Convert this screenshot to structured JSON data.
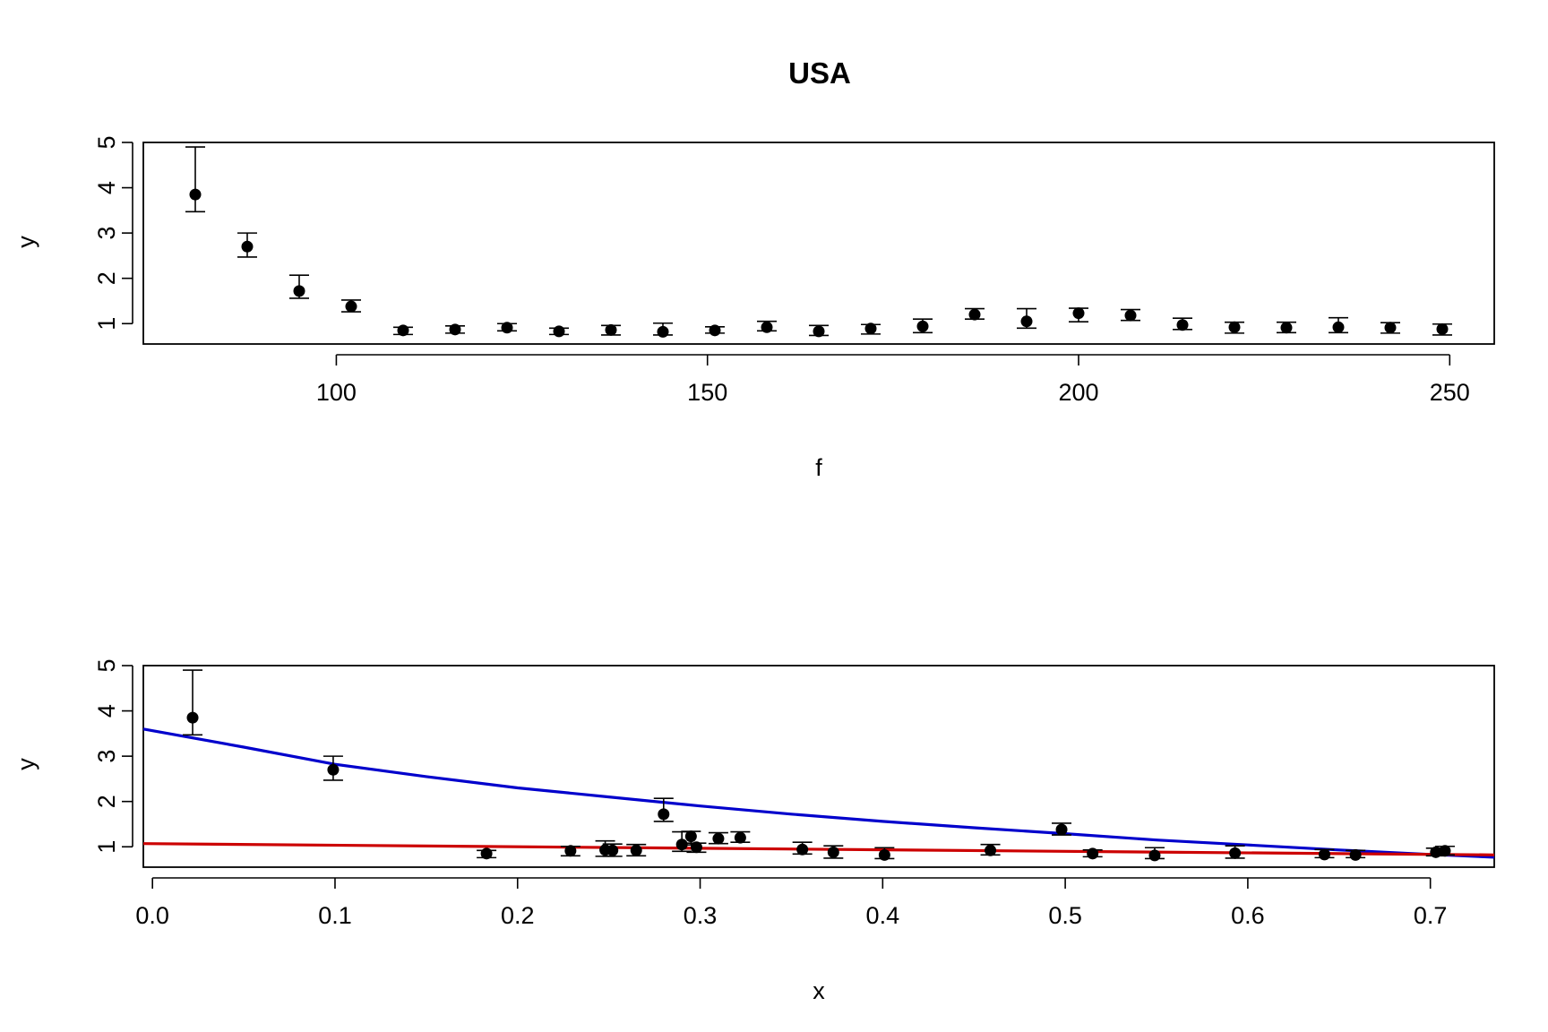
{
  "title": "USA",
  "colors": {
    "points": "#000000",
    "fit_decay": "#0000cc",
    "fit_flat": "#cc0000"
  },
  "chart_data": [
    {
      "type": "scatter",
      "xlabel": "f",
      "ylabel": "y",
      "xlim": [
        74,
        256
      ],
      "ylim": [
        0.55,
        5
      ],
      "xticks": [
        "100",
        "150",
        "200",
        "250"
      ],
      "yticks": [
        "1",
        "2",
        "3",
        "4",
        "5"
      ],
      "grid": false,
      "x": [
        81,
        88,
        95,
        102,
        109,
        116,
        123,
        130,
        137,
        144,
        151,
        158,
        165,
        172,
        179,
        186,
        193,
        200,
        207,
        214,
        221,
        228,
        235,
        242,
        249
      ],
      "y": [
        3.85,
        2.7,
        1.72,
        1.38,
        0.85,
        0.87,
        0.91,
        0.83,
        0.86,
        0.82,
        0.85,
        0.92,
        0.83,
        0.89,
        0.94,
        1.2,
        1.05,
        1.23,
        1.18,
        0.97,
        0.92,
        0.91,
        0.92,
        0.91,
        0.88
      ],
      "err_lower": [
        3.47,
        2.47,
        1.56,
        1.26,
        0.76,
        0.79,
        0.84,
        0.76,
        0.75,
        0.75,
        0.79,
        0.84,
        0.74,
        0.77,
        0.8,
        1.1,
        0.9,
        1.04,
        1.07,
        0.87,
        0.79,
        0.8,
        0.8,
        0.79,
        0.75
      ],
      "err_upper": [
        4.9,
        3.0,
        2.07,
        1.52,
        0.92,
        0.95,
        1.0,
        0.9,
        0.96,
        1.01,
        0.93,
        1.05,
        0.96,
        0.98,
        1.1,
        1.33,
        1.33,
        1.34,
        1.31,
        1.12,
        1.03,
        1.03,
        1.13,
        1.02,
        0.99
      ]
    },
    {
      "type": "scatter",
      "xlabel": "x",
      "ylabel": "y",
      "xlim": [
        -0.005,
        0.735
      ],
      "ylim": [
        0.55,
        5
      ],
      "xticks": [
        "0.0",
        "0.1",
        "0.2",
        "0.3",
        "0.4",
        "0.5",
        "0.6",
        "0.7"
      ],
      "yticks": [
        "1",
        "2",
        "3",
        "4",
        "5"
      ],
      "grid": false,
      "x": [
        0.022,
        0.099,
        0.183,
        0.229,
        0.248,
        0.252,
        0.265,
        0.28,
        0.29,
        0.295,
        0.298,
        0.31,
        0.322,
        0.356,
        0.373,
        0.401,
        0.459,
        0.498,
        0.515,
        0.549,
        0.593,
        0.642,
        0.659,
        0.703,
        0.708
      ],
      "y": [
        3.85,
        2.7,
        0.85,
        0.91,
        0.93,
        0.92,
        0.92,
        1.72,
        1.05,
        1.23,
        0.99,
        1.18,
        1.2,
        0.94,
        0.88,
        0.82,
        0.92,
        1.38,
        0.85,
        0.81,
        0.86,
        0.83,
        0.82,
        0.88,
        0.91
      ],
      "err_lower": [
        3.47,
        2.47,
        0.76,
        0.8,
        0.79,
        0.79,
        0.8,
        1.56,
        0.9,
        1.04,
        0.88,
        1.07,
        1.1,
        0.84,
        0.75,
        0.74,
        0.82,
        1.26,
        0.78,
        0.74,
        0.75,
        0.76,
        0.76,
        0.8,
        0.82
      ],
      "err_upper": [
        4.9,
        3.0,
        0.92,
        1.01,
        1.13,
        1.06,
        1.05,
        2.07,
        1.33,
        1.34,
        1.08,
        1.31,
        1.33,
        1.1,
        1.02,
        0.98,
        1.05,
        1.52,
        0.93,
        0.98,
        1.02,
        0.94,
        0.92,
        0.97,
        1.01
      ],
      "lines": [
        {
          "color": "#0000cc",
          "x": [
            -0.005,
            0.05,
            0.1,
            0.15,
            0.2,
            0.25,
            0.3,
            0.35,
            0.4,
            0.45,
            0.5,
            0.55,
            0.6,
            0.65,
            0.7,
            0.735
          ],
          "y": [
            3.6,
            3.2,
            2.82,
            2.55,
            2.3,
            2.1,
            1.9,
            1.72,
            1.56,
            1.42,
            1.29,
            1.15,
            1.04,
            0.93,
            0.83,
            0.77
          ]
        },
        {
          "color": "#cc0000",
          "x": [
            -0.005,
            0.735
          ],
          "y": [
            1.07,
            0.82
          ]
        }
      ]
    }
  ]
}
